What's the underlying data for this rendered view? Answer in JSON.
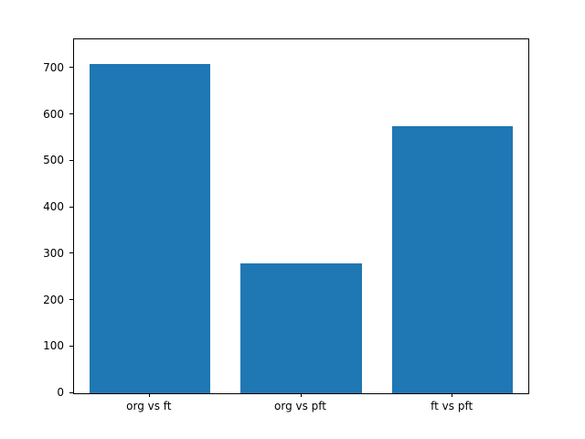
{
  "chart_data": {
    "type": "bar",
    "title": "",
    "xlabel": "",
    "ylabel": "",
    "categories": [
      "org vs ft",
      "org vs pft",
      "ft vs pft"
    ],
    "values": [
      710,
      280,
      575
    ],
    "ylim": [
      0,
      763
    ],
    "yticks": [
      0,
      100,
      200,
      300,
      400,
      500,
      600,
      700
    ],
    "bar_color": "#1f77b4",
    "background_color": "#ffffff",
    "axis_color": "#000000",
    "grid": false,
    "legend": null,
    "bar_width_fraction": 0.8
  }
}
